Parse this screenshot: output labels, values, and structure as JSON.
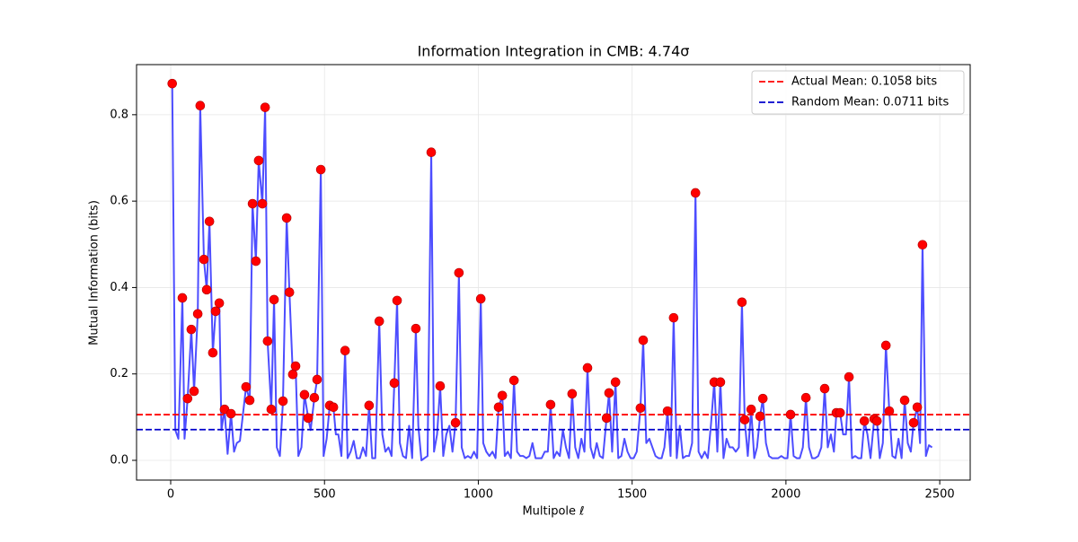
{
  "chart_data": {
    "type": "line",
    "title": "Information Integration in CMB: 4.74σ",
    "xlabel": "Multipole ℓ",
    "ylabel": "Mutual Information (bits)",
    "xlim": [
      -111,
      2599
    ],
    "ylim": [
      -0.0457,
      0.916
    ],
    "xticks": [
      0,
      500,
      1000,
      1500,
      2000,
      2500
    ],
    "yticks": [
      {
        "value": 0,
        "label": "0.0"
      },
      0.2,
      0.4,
      0.6,
      0.8
    ],
    "grid": true,
    "legend_loc": "upper right",
    "series": [
      {
        "color": "#4d4dff",
        "marker": "none",
        "x": [
          5,
          15,
          25,
          38,
          45,
          55,
          67,
          76,
          88,
          96,
          108,
          117,
          126,
          137,
          146,
          158,
          165,
          175,
          185,
          196,
          206,
          215,
          225,
          245,
          257,
          266,
          277,
          286,
          298,
          307,
          315,
          327,
          336,
          345,
          355,
          365,
          377,
          386,
          397,
          406,
          415,
          425,
          435,
          447,
          455,
          467,
          476,
          488,
          497,
          507,
          517,
          529,
          537,
          545,
          555,
          567,
          575,
          585,
          595,
          605,
          615,
          625,
          635,
          645,
          655,
          665,
          678,
          688,
          698,
          708,
          718,
          727,
          736,
          745,
          755,
          765,
          775,
          785,
          797,
          805,
          815,
          825,
          835,
          847,
          856,
          866,
          876,
          886,
          896,
          906,
          916,
          926,
          937,
          946,
          956,
          966,
          976,
          986,
          996,
          1008,
          1016,
          1026,
          1036,
          1046,
          1056,
          1066,
          1078,
          1086,
          1096,
          1106,
          1116,
          1126,
          1136,
          1146,
          1156,
          1166,
          1176,
          1186,
          1196,
          1206,
          1216,
          1226,
          1235,
          1245,
          1255,
          1265,
          1275,
          1285,
          1295,
          1305,
          1315,
          1325,
          1335,
          1345,
          1355,
          1365,
          1375,
          1385,
          1395,
          1405,
          1417,
          1425,
          1435,
          1446,
          1455,
          1465,
          1475,
          1485,
          1495,
          1505,
          1515,
          1527,
          1536,
          1546,
          1556,
          1566,
          1576,
          1586,
          1596,
          1605,
          1615,
          1625,
          1635,
          1645,
          1655,
          1665,
          1675,
          1685,
          1695,
          1706,
          1716,
          1726,
          1736,
          1746,
          1756,
          1767,
          1777,
          1787,
          1797,
          1807,
          1817,
          1827,
          1837,
          1847,
          1857,
          1866,
          1876,
          1887,
          1897,
          1906,
          1916,
          1925,
          1935,
          1945,
          1955,
          1965,
          1975,
          1985,
          1995,
          2005,
          2015,
          2025,
          2035,
          2045,
          2055,
          2065,
          2075,
          2085,
          2095,
          2105,
          2115,
          2126,
          2136,
          2146,
          2156,
          2164,
          2176,
          2186,
          2195,
          2205,
          2215,
          2225,
          2235,
          2245,
          2255,
          2265,
          2275,
          2287,
          2296,
          2305,
          2315,
          2325,
          2336,
          2346,
          2356,
          2366,
          2376,
          2386,
          2396,
          2406,
          2415,
          2427,
          2436,
          2444,
          2455,
          2465,
          2475
        ],
        "values": [
          0.872,
          0.07,
          0.05,
          0.376,
          0.05,
          0.143,
          0.303,
          0.16,
          0.339,
          0.821,
          0.465,
          0.395,
          0.553,
          0.249,
          0.345,
          0.364,
          0.07,
          0.118,
          0.015,
          0.108,
          0.02,
          0.04,
          0.045,
          0.17,
          0.139,
          0.594,
          0.461,
          0.694,
          0.594,
          0.817,
          0.276,
          0.118,
          0.372,
          0.03,
          0.01,
          0.137,
          0.561,
          0.389,
          0.199,
          0.218,
          0.01,
          0.03,
          0.152,
          0.098,
          0.07,
          0.145,
          0.187,
          0.673,
          0.01,
          0.05,
          0.127,
          0.123,
          0.06,
          0.06,
          0.01,
          0.254,
          0.005,
          0.02,
          0.045,
          0.005,
          0.005,
          0.03,
          0.01,
          0.127,
          0.005,
          0.005,
          0.322,
          0.06,
          0.02,
          0.03,
          0.01,
          0.179,
          0.37,
          0.04,
          0.01,
          0.005,
          0.08,
          0.005,
          0.305,
          0.08,
          0,
          0.005,
          0.01,
          0.713,
          0.02,
          0.06,
          0.172,
          0.01,
          0.06,
          0.08,
          0.02,
          0.087,
          0.434,
          0.03,
          0.005,
          0.01,
          0.005,
          0.02,
          0.005,
          0.374,
          0.04,
          0.02,
          0.01,
          0.02,
          0.005,
          0.123,
          0.15,
          0.01,
          0.02,
          0.005,
          0.185,
          0.02,
          0.01,
          0.01,
          0.005,
          0.01,
          0.04,
          0.005,
          0.005,
          0.005,
          0.02,
          0.02,
          0.129,
          0.005,
          0.02,
          0.01,
          0.07,
          0.03,
          0.005,
          0.154,
          0.03,
          0.005,
          0.05,
          0.02,
          0.214,
          0.03,
          0.005,
          0.04,
          0.01,
          0.005,
          0.098,
          0.156,
          0.02,
          0.181,
          0.005,
          0.01,
          0.05,
          0.02,
          0.005,
          0.005,
          0.02,
          0.121,
          0.278,
          0.04,
          0.05,
          0.03,
          0.01,
          0.005,
          0.005,
          0.03,
          0.114,
          0.01,
          0.33,
          0.005,
          0.08,
          0.005,
          0.01,
          0.01,
          0.04,
          0.619,
          0.02,
          0.005,
          0.02,
          0.005,
          0.08,
          0.181,
          0.02,
          0.181,
          0.005,
          0.05,
          0.03,
          0.03,
          0.02,
          0.03,
          0.366,
          0.094,
          0.01,
          0.118,
          0.005,
          0.03,
          0.102,
          0.143,
          0.04,
          0.01,
          0.005,
          0.005,
          0.005,
          0.01,
          0.005,
          0.005,
          0.106,
          0.01,
          0.005,
          0.005,
          0.03,
          0.145,
          0.03,
          0.005,
          0.005,
          0.01,
          0.03,
          0.166,
          0.03,
          0.06,
          0.02,
          0.11,
          0.11,
          0.06,
          0.06,
          0.193,
          0.005,
          0.01,
          0.005,
          0.005,
          0.091,
          0.06,
          0.005,
          0.096,
          0.091,
          0.005,
          0.04,
          0.266,
          0.114,
          0.01,
          0.005,
          0.05,
          0.005,
          0.139,
          0.04,
          0.02,
          0.087,
          0.123,
          0.04,
          0.499,
          0.01,
          0.035,
          0.03
        ]
      },
      {
        "color": "#ff0000",
        "marker": "dot",
        "x": [
          5,
          38,
          55,
          67,
          76,
          88,
          96,
          108,
          117,
          126,
          137,
          146,
          158,
          175,
          196,
          245,
          257,
          266,
          277,
          286,
          298,
          307,
          315,
          327,
          336,
          365,
          377,
          386,
          397,
          406,
          435,
          447,
          467,
          476,
          488,
          517,
          529,
          567,
          645,
          678,
          727,
          736,
          797,
          847,
          876,
          926,
          937,
          1008,
          1066,
          1078,
          1116,
          1235,
          1305,
          1355,
          1417,
          1425,
          1446,
          1527,
          1536,
          1615,
          1635,
          1706,
          1767,
          1787,
          1857,
          1866,
          1887,
          1916,
          1925,
          2015,
          2065,
          2126,
          2164,
          2176,
          2205,
          2255,
          2287,
          2296,
          2325,
          2336,
          2386,
          2415,
          2427,
          2444
        ],
        "values": [
          0.872,
          0.376,
          0.143,
          0.303,
          0.16,
          0.339,
          0.821,
          0.465,
          0.395,
          0.553,
          0.249,
          0.345,
          0.364,
          0.118,
          0.108,
          0.17,
          0.139,
          0.594,
          0.461,
          0.694,
          0.594,
          0.817,
          0.276,
          0.118,
          0.372,
          0.137,
          0.561,
          0.389,
          0.199,
          0.218,
          0.152,
          0.098,
          0.145,
          0.187,
          0.673,
          0.127,
          0.123,
          0.254,
          0.127,
          0.322,
          0.179,
          0.37,
          0.305,
          0.713,
          0.172,
          0.087,
          0.434,
          0.374,
          0.123,
          0.15,
          0.185,
          0.129,
          0.154,
          0.214,
          0.098,
          0.156,
          0.181,
          0.121,
          0.278,
          0.114,
          0.33,
          0.619,
          0.181,
          0.181,
          0.366,
          0.094,
          0.118,
          0.102,
          0.143,
          0.106,
          0.145,
          0.166,
          0.11,
          0.11,
          0.193,
          0.091,
          0.096,
          0.091,
          0.266,
          0.114,
          0.139,
          0.087,
          0.123,
          0.499
        ]
      }
    ],
    "hlines": [
      {
        "name": "Actual Mean: 0.1058 bits",
        "value": 0.1058,
        "color": "#ff0000"
      },
      {
        "name": "Random Mean: 0.0711 bits",
        "value": 0.0711,
        "color": "#0000cc"
      }
    ]
  }
}
